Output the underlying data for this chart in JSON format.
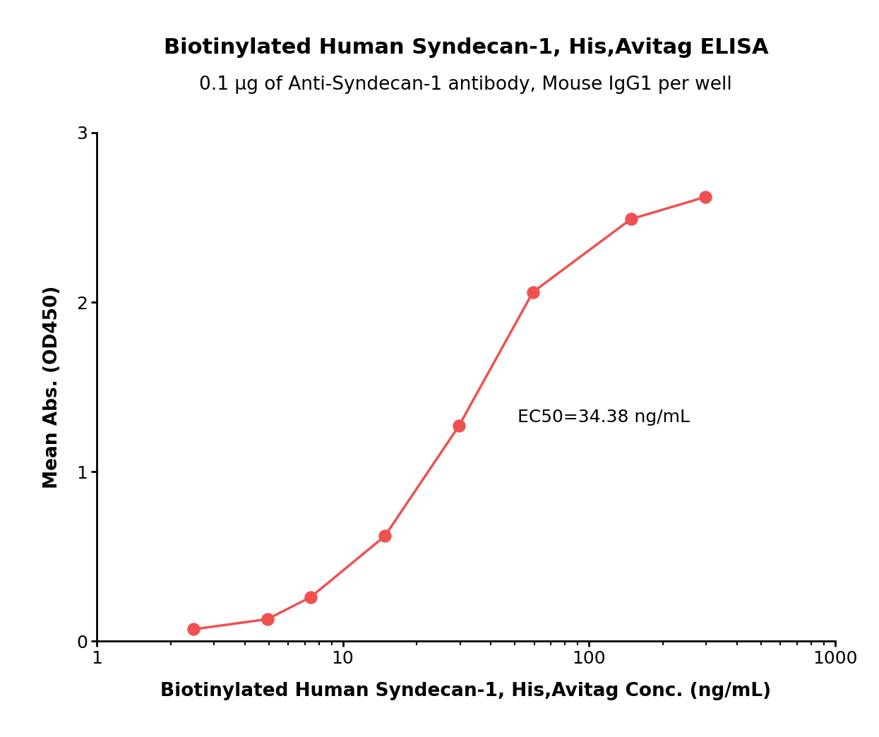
{
  "title": "Biotinylated Human Syndecan-1, His,Avitag ELISA",
  "subtitle": "0.1 μg of Anti-Syndecan-1 antibody, Mouse IgG1 per well",
  "xlabel": "Biotinylated Human Syndecan-1, His,Avitag Conc. (ng/mL)",
  "ylabel": "Mean Abs. (OD450)",
  "ec50_label": "EC50=34.38 ng/mL",
  "line_color": "#F05050",
  "marker_color": "#F05050",
  "x_data": [
    2.469,
    4.938,
    7.407,
    14.815,
    29.63,
    59.26,
    148.15,
    296.3
  ],
  "y_data": [
    0.07,
    0.13,
    0.26,
    0.62,
    1.27,
    2.06,
    2.49,
    2.62
  ],
  "xlim": [
    1,
    1000
  ],
  "ylim": [
    0,
    3
  ],
  "yticks": [
    0,
    1,
    2,
    3
  ],
  "xticks": [
    1,
    10,
    100,
    1000
  ],
  "title_fontsize": 22,
  "subtitle_fontsize": 19,
  "axis_label_fontsize": 19,
  "tick_fontsize": 18,
  "annotation_fontsize": 18,
  "background_color": "#ffffff"
}
